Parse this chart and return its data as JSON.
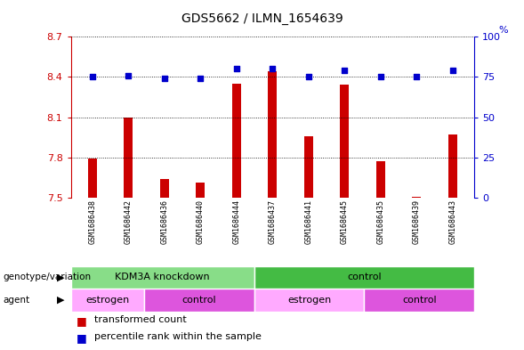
{
  "title": "GDS5662 / ILMN_1654639",
  "samples": [
    "GSM1686438",
    "GSM1686442",
    "GSM1686436",
    "GSM1686440",
    "GSM1686444",
    "GSM1686437",
    "GSM1686441",
    "GSM1686445",
    "GSM1686435",
    "GSM1686439",
    "GSM1686443"
  ],
  "bar_values": [
    7.79,
    8.1,
    7.64,
    7.61,
    8.35,
    8.44,
    7.96,
    8.34,
    7.77,
    7.51,
    7.97
  ],
  "dot_values": [
    75,
    76,
    74,
    74,
    80,
    80,
    75,
    79,
    75,
    75,
    79
  ],
  "ylim_left": [
    7.5,
    8.7
  ],
  "ylim_right": [
    0,
    100
  ],
  "yticks_left": [
    7.5,
    7.8,
    8.1,
    8.4,
    8.7
  ],
  "yticks_right": [
    0,
    25,
    50,
    75,
    100
  ],
  "bar_color": "#cc0000",
  "dot_color": "#0000cc",
  "bar_baseline": 7.5,
  "genotype_groups": [
    {
      "label": "KDM3A knockdown",
      "start": 0,
      "end": 5,
      "color": "#88dd88"
    },
    {
      "label": "control",
      "start": 5,
      "end": 11,
      "color": "#44bb44"
    }
  ],
  "agent_groups": [
    {
      "label": "estrogen",
      "start": 0,
      "end": 2,
      "color": "#ffaaff"
    },
    {
      "label": "control",
      "start": 2,
      "end": 5,
      "color": "#dd55dd"
    },
    {
      "label": "estrogen",
      "start": 5,
      "end": 8,
      "color": "#ffaaff"
    },
    {
      "label": "control",
      "start": 8,
      "end": 11,
      "color": "#dd55dd"
    }
  ],
  "genotype_label": "genotype/variation",
  "agent_label": "agent",
  "legend_bar_label": "transformed count",
  "legend_dot_label": "percentile rank within the sample",
  "bar_label_color": "#cc0000",
  "dot_label_color": "#0000cc",
  "background_color": "#ffffff"
}
